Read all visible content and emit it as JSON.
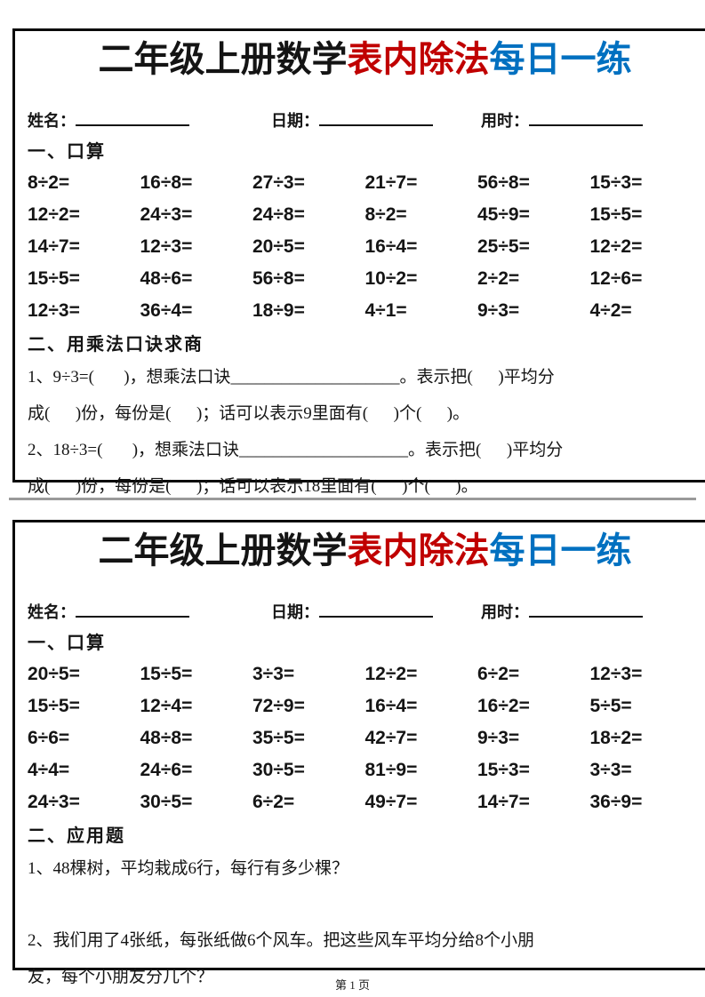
{
  "colors": {
    "black": "#141414",
    "red": "#C00000",
    "blue": "#0070C0"
  },
  "footer": {
    "page_label": "第 1 页"
  },
  "worksheets": [
    {
      "title": {
        "part_black": "二年级上册数学",
        "part_red": "表内除法",
        "part_blue": "每日一练"
      },
      "fields": {
        "name_label": "姓名：",
        "date_label": "日期：",
        "time_label": "用时："
      },
      "oral": {
        "heading": "一、口算",
        "problems": [
          "8÷2=",
          "16÷8=",
          "27÷3=",
          "21÷7=",
          "56÷8=",
          "15÷3=",
          "12÷2=",
          "24÷3=",
          "24÷8=",
          "8÷2=",
          "45÷9=",
          "15÷5=",
          "14÷7=",
          "12÷3=",
          "20÷5=",
          "16÷4=",
          "25÷5=",
          "12÷2=",
          "15÷5=",
          "48÷6=",
          "56÷8=",
          "10÷2=",
          "2÷2=",
          "12÷6=",
          "12÷3=",
          "36÷4=",
          "18÷9=",
          "4÷1=",
          "9÷3=",
          "4÷2="
        ]
      },
      "quiz": {
        "heading": "二、用乘法口诀求商",
        "questions": [
          {
            "lines": [
              "1、9÷3=(       )，想乘法口诀____________________。表示把(      )平均分",
              "成(      )份，每份是(      )；话可以表示9里面有(      )个(      )。"
            ]
          },
          {
            "lines": [
              "2、18÷3=(       )，想乘法口诀____________________。表示把(      )平均分",
              "成(      )份，每份是(      )；话可以表示18里面有(      )个(      )。"
            ]
          }
        ]
      }
    },
    {
      "title": {
        "part_black": "二年级上册数学",
        "part_red": "表内除法",
        "part_blue": "每日一练"
      },
      "fields": {
        "name_label": "姓名：",
        "date_label": "日期：",
        "time_label": "用时："
      },
      "oral": {
        "heading": "一、口算",
        "problems": [
          "20÷5=",
          "15÷5=",
          "3÷3=",
          "12÷2=",
          "6÷2=",
          "12÷3=",
          "15÷5=",
          "12÷4=",
          "72÷9=",
          "16÷4=",
          "16÷2=",
          "5÷5=",
          "6÷6=",
          "48÷8=",
          "35÷5=",
          "42÷7=",
          "9÷3=",
          "18÷2=",
          "4÷4=",
          "24÷6=",
          "30÷5=",
          "81÷9=",
          "15÷3=",
          "3÷3=",
          "24÷3=",
          "30÷5=",
          "6÷2=",
          "49÷7=",
          "14÷7=",
          "36÷9="
        ]
      },
      "quiz": {
        "heading": "二、应用题",
        "questions": [
          {
            "lines": [
              "1、48棵树，平均栽成6行，每行有多少棵？"
            ]
          },
          {
            "lines": [
              "2、我们用了4张纸，每张纸做6个风车。把这些风车平均分给8个小朋",
              "友，每个小朋友分几个？"
            ]
          }
        ]
      }
    }
  ]
}
